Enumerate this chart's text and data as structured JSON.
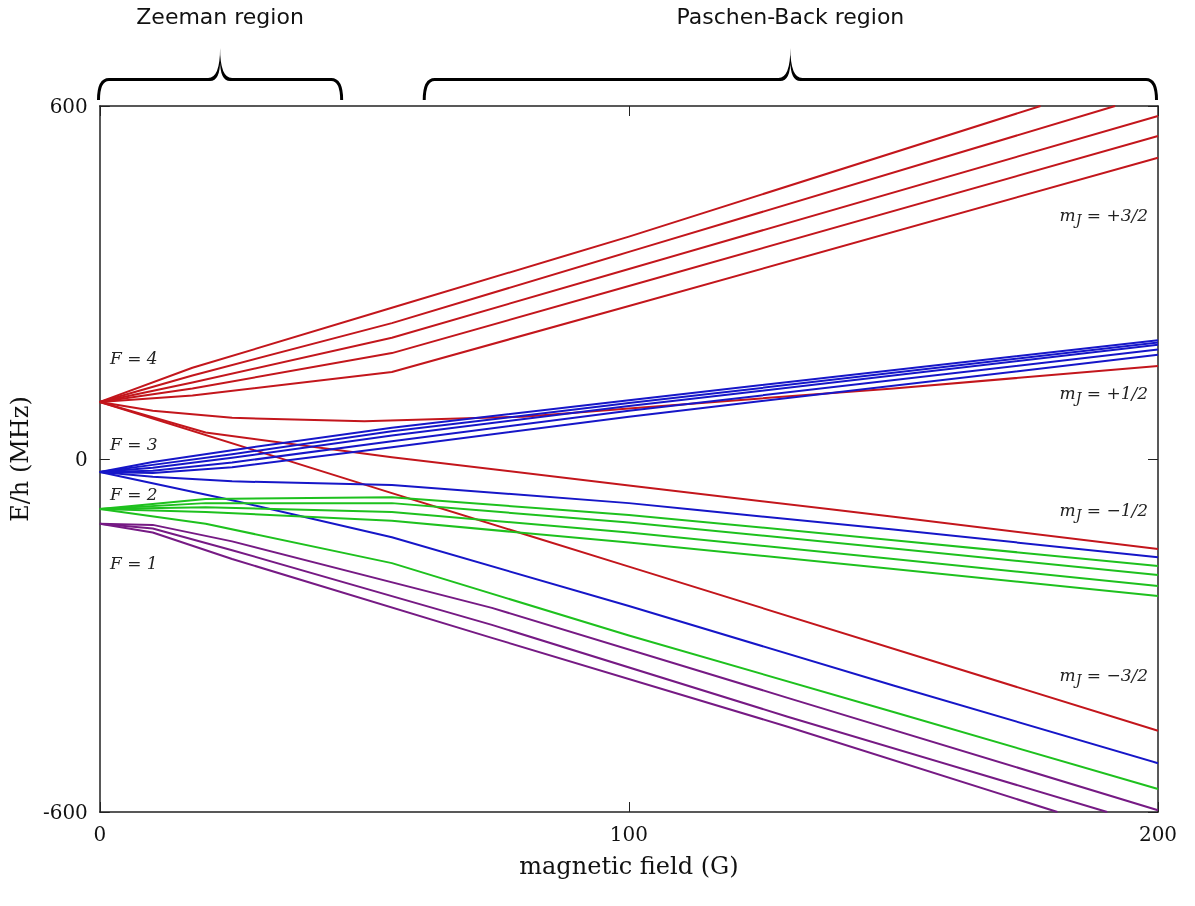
{
  "chart_data": {
    "type": "line",
    "xlabel": "magnetic field (G)",
    "ylabel": "E/h (MHz)",
    "xlim": [
      0,
      200
    ],
    "xticks": [
      0,
      100,
      200
    ],
    "ylim": [
      -600,
      600
    ],
    "yticks": [
      -600,
      0,
      600
    ],
    "grid": false,
    "marker": "none",
    "line_style": "solid",
    "series": [
      {
        "color": "#c3161c",
        "x": [
          0,
          17.5,
          55.2,
          100,
          177.8
        ],
        "values": [
          97,
          155,
          257,
          378,
          600
        ]
      },
      {
        "color": "#c3161c",
        "x": [
          0,
          17.5,
          55.2,
          100,
          191.9
        ],
        "values": [
          97,
          142,
          231,
          352,
          600
        ]
      },
      {
        "color": "#c3161c",
        "x": [
          0,
          17.5,
          55.2,
          100,
          200
        ],
        "values": [
          97,
          130,
          206,
          323,
          583
        ]
      },
      {
        "color": "#c3161c",
        "x": [
          0,
          17.5,
          55.2,
          100,
          200
        ],
        "values": [
          97,
          120,
          180,
          294,
          549
        ]
      },
      {
        "color": "#c3161c",
        "x": [
          0,
          17.5,
          55.2,
          100,
          200
        ],
        "values": [
          97,
          108,
          148,
          260,
          512
        ]
      },
      {
        "color": "#c3161c",
        "x": [
          0,
          10,
          25,
          50,
          80,
          100,
          150,
          200
        ],
        "values": [
          97,
          82,
          70,
          64,
          72,
          86,
          120,
          158
        ]
      },
      {
        "color": "#c3161c",
        "x": [
          0,
          20,
          55.2,
          100,
          150,
          200
        ],
        "values": [
          97,
          45,
          3,
          -45,
          -98,
          -153
        ]
      },
      {
        "color": "#c3161c",
        "x": [
          0,
          55.2,
          100,
          200
        ],
        "values": [
          97,
          -58,
          -183,
          -462
        ]
      },
      {
        "color": "#1616c8",
        "x": [
          0,
          10,
          25,
          55.2,
          100,
          200
        ],
        "values": [
          -22,
          -5,
          15,
          53,
          100,
          202
        ]
      },
      {
        "color": "#1616c8",
        "x": [
          0,
          10,
          25,
          55.2,
          100,
          200
        ],
        "values": [
          -22,
          -10,
          8,
          47,
          95,
          198
        ]
      },
      {
        "color": "#1616c8",
        "x": [
          0,
          10,
          25,
          55.2,
          100,
          200
        ],
        "values": [
          -22,
          -15,
          2,
          40,
          90,
          194
        ]
      },
      {
        "color": "#1616c8",
        "x": [
          0,
          10,
          25,
          55.2,
          100,
          200
        ],
        "values": [
          -22,
          -20,
          -6,
          30,
          82,
          186
        ]
      },
      {
        "color": "#1616c8",
        "x": [
          0,
          10,
          25,
          55.2,
          100,
          200
        ],
        "values": [
          -22,
          -24,
          -14,
          20,
          72,
          177
        ]
      },
      {
        "color": "#1616c8",
        "x": [
          0,
          10,
          25,
          55.2,
          100,
          150,
          200
        ],
        "values": [
          -22,
          -30,
          -38,
          -44,
          -75,
          -120,
          -167
        ]
      },
      {
        "color": "#1616c8",
        "x": [
          0,
          25,
          55.2,
          100,
          150,
          200
        ],
        "values": [
          -22,
          -70,
          -133,
          -250,
          -385,
          -517
        ]
      },
      {
        "color": "#1ec11e",
        "x": [
          0,
          20,
          55.2,
          100,
          150,
          200
        ],
        "values": [
          -85,
          -68,
          -65,
          -95,
          -138,
          -182
        ]
      },
      {
        "color": "#1ec11e",
        "x": [
          0,
          20,
          55.2,
          100,
          150,
          200
        ],
        "values": [
          -85,
          -75,
          -75,
          -108,
          -152,
          -197
        ]
      },
      {
        "color": "#1ec11e",
        "x": [
          0,
          20,
          55.2,
          100,
          150,
          200
        ],
        "values": [
          -85,
          -82,
          -90,
          -125,
          -170,
          -216
        ]
      },
      {
        "color": "#1ec11e",
        "x": [
          0,
          20,
          55.2,
          100,
          150,
          200
        ],
        "values": [
          -85,
          -90,
          -105,
          -142,
          -187,
          -233
        ]
      },
      {
        "color": "#1ec11e",
        "x": [
          0,
          20,
          55.2,
          100,
          150,
          200
        ],
        "values": [
          -85,
          -110,
          -177,
          -300,
          -430,
          -561
        ]
      },
      {
        "color": "#761a84",
        "x": [
          0,
          10,
          25,
          74.1,
          130,
          200
        ],
        "values": [
          -110,
          -112,
          -140,
          -253,
          -406,
          -597
        ]
      },
      {
        "color": "#761a84",
        "x": [
          0,
          10,
          25,
          74.1,
          130,
          190.4
        ],
        "values": [
          -110,
          -118,
          -155,
          -282,
          -438,
          -600
        ]
      },
      {
        "color": "#761a84",
        "x": [
          0,
          10,
          25,
          74.1,
          130,
          181
        ],
        "values": [
          -110,
          -125,
          -170,
          -304,
          -455,
          -600
        ]
      }
    ],
    "annotations": [
      "Zeeman region",
      "Paschen-Back region",
      "F = 4",
      "F = 3",
      "F = 2",
      "F = 1",
      "m$_{J}$ = +3/2",
      "m$_{J}$ = +1/2",
      "m$_{J}$ = −1/2",
      "m$_{J}$ = −3/2"
    ]
  }
}
